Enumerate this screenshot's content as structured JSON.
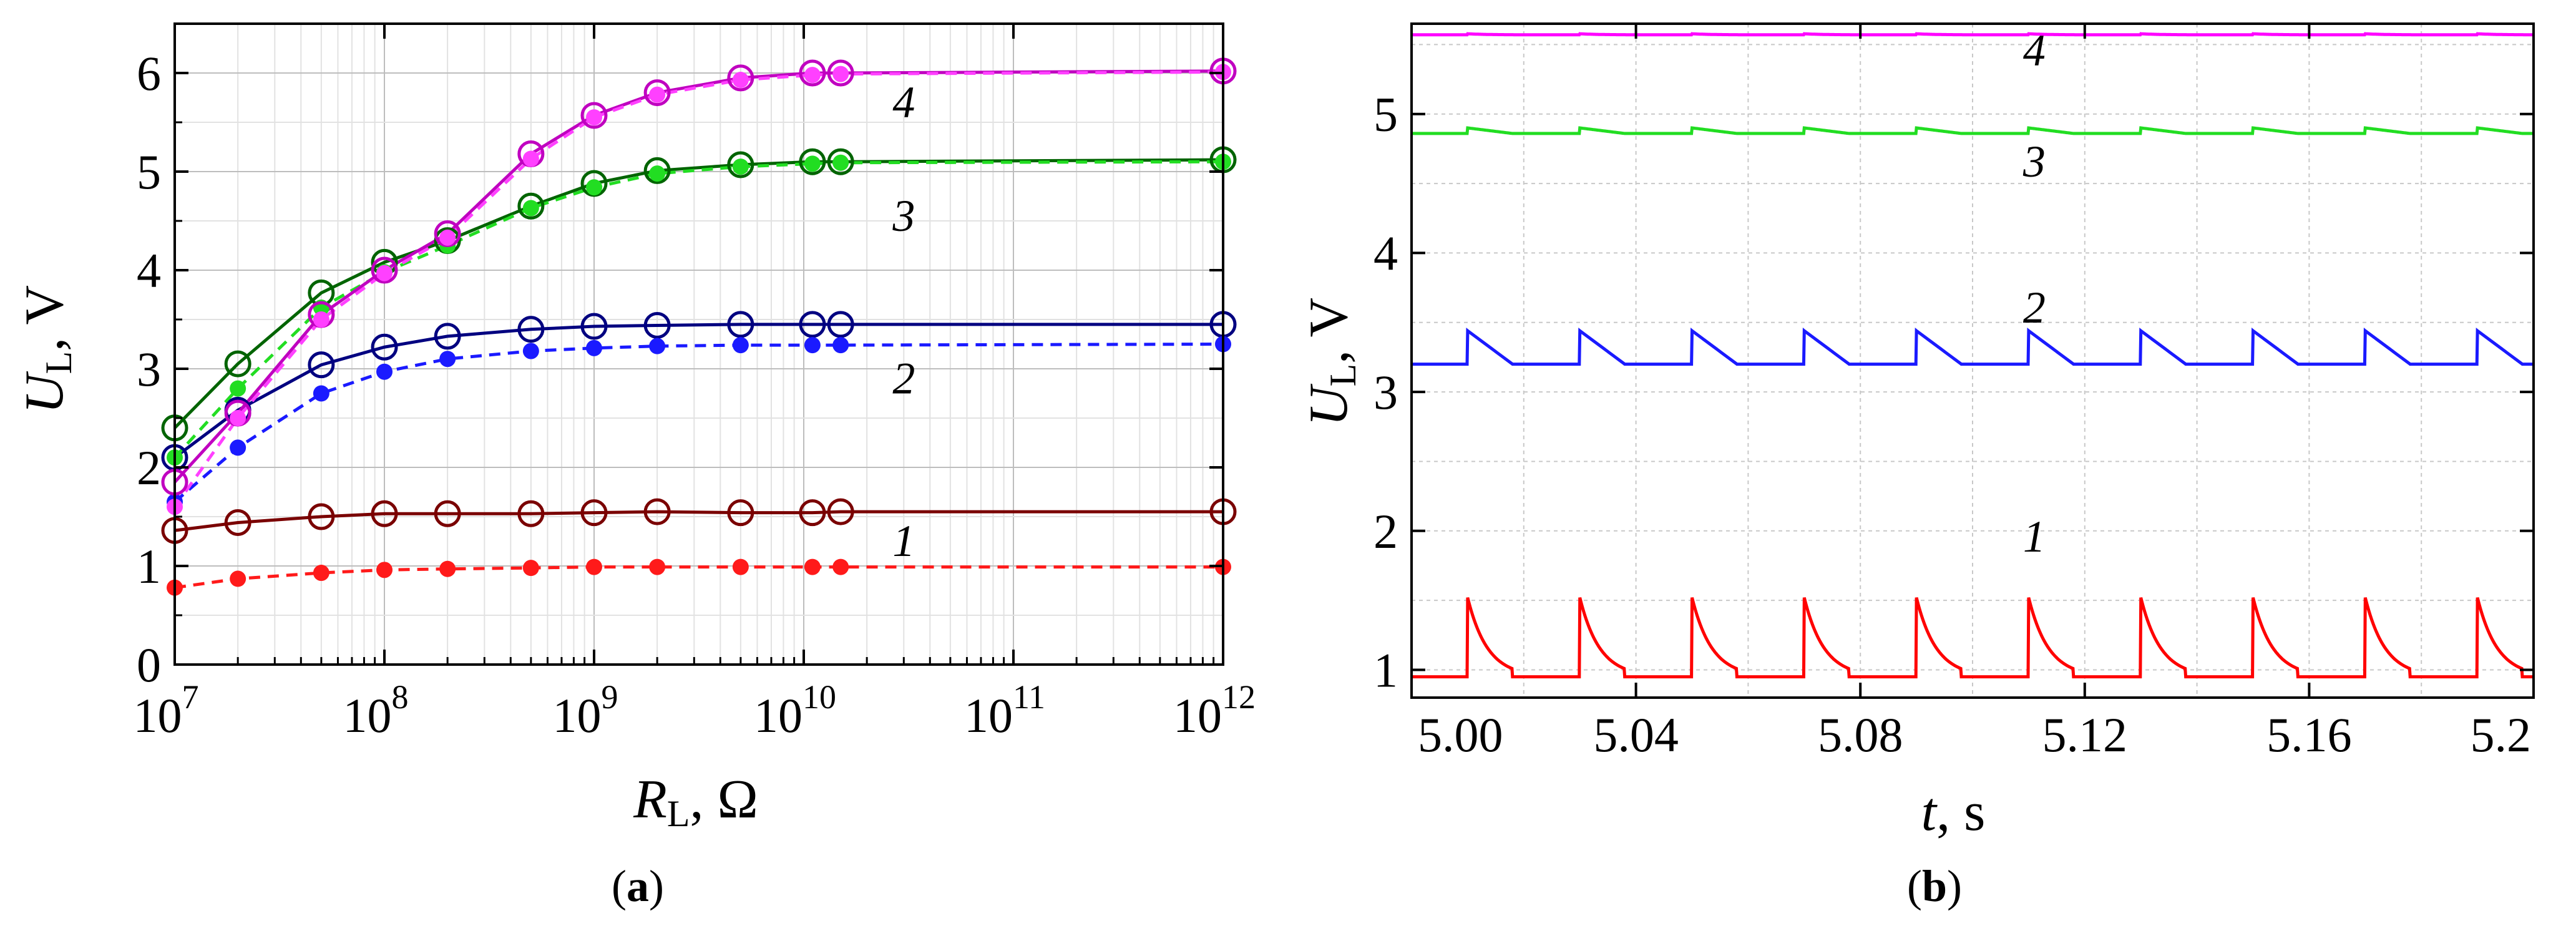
{
  "chart_data": [
    {
      "panel": "a",
      "type": "line",
      "xscale": "log",
      "xlim": [
        10000000,
        1000000000000
      ],
      "ylim": [
        0,
        6.5
      ],
      "xticks": [
        10000000,
        100000000,
        1000000000,
        10000000000,
        100000000000,
        1000000000000
      ],
      "xtick_labels": [
        {
          "base": "10",
          "exp": "7"
        },
        {
          "base": "10",
          "exp": "8"
        },
        {
          "base": "10",
          "exp": "9"
        },
        {
          "base": "10",
          "exp": "10"
        },
        {
          "base": "10",
          "exp": "11"
        },
        {
          "base": "10",
          "exp": "12"
        }
      ],
      "yticks": [
        0,
        1,
        2,
        3,
        4,
        5,
        6
      ],
      "ytick_labels": [
        "0",
        "1",
        "2",
        "3",
        "4",
        "5",
        "6"
      ],
      "xlabel": {
        "main": "R",
        "sub": "L",
        "rest": ", Ω"
      },
      "ylabel": {
        "main": "U",
        "sub": "L",
        "rest": ", V"
      },
      "grid": true,
      "series": [
        {
          "name": "1 solid",
          "curve_label": "1",
          "color": "#7a0000",
          "style": "solid",
          "marker": "open-circle",
          "x": [
            10000000,
            20000000,
            50000000,
            100000000,
            200000000,
            500000000,
            1000000000,
            2000000000,
            5000000000,
            11000000000,
            15000000000,
            1000000000000
          ],
          "y": [
            1.36,
            1.44,
            1.5,
            1.53,
            1.53,
            1.53,
            1.54,
            1.55,
            1.54,
            1.54,
            1.55,
            1.55
          ]
        },
        {
          "name": "1 dashed",
          "curve_label": "1",
          "color": "#ff1a1a",
          "style": "dashed",
          "marker": "filled-circle",
          "x": [
            10000000,
            20000000,
            50000000,
            100000000,
            200000000,
            500000000,
            1000000000,
            2000000000,
            5000000000,
            11000000000,
            15000000000,
            1000000000000
          ],
          "y": [
            0.78,
            0.87,
            0.93,
            0.96,
            0.97,
            0.98,
            0.99,
            0.99,
            0.99,
            0.99,
            0.99,
            0.99
          ]
        },
        {
          "name": "2 solid",
          "curve_label": "2",
          "color": "#000080",
          "style": "solid",
          "marker": "open-circle",
          "x": [
            10000000,
            20000000,
            50000000,
            100000000,
            200000000,
            500000000,
            1000000000,
            2000000000,
            5000000000,
            11000000000,
            15000000000,
            1000000000000
          ],
          "y": [
            2.1,
            2.58,
            3.04,
            3.22,
            3.33,
            3.4,
            3.43,
            3.44,
            3.45,
            3.45,
            3.45,
            3.45
          ]
        },
        {
          "name": "2 dashed",
          "curve_label": "2",
          "color": "#1a1aff",
          "style": "dashed",
          "marker": "filled-circle",
          "x": [
            10000000,
            20000000,
            50000000,
            100000000,
            200000000,
            500000000,
            1000000000,
            2000000000,
            5000000000,
            11000000000,
            15000000000,
            1000000000000
          ],
          "y": [
            1.65,
            2.2,
            2.75,
            2.97,
            3.1,
            3.18,
            3.21,
            3.23,
            3.24,
            3.24,
            3.24,
            3.25
          ]
        },
        {
          "name": "3 solid",
          "curve_label": "3",
          "color": "#006400",
          "style": "solid",
          "marker": "open-circle",
          "x": [
            10000000,
            20000000,
            50000000,
            100000000,
            200000000,
            500000000,
            1000000000,
            2000000000,
            5000000000,
            11000000000,
            15000000000,
            1000000000000
          ],
          "y": [
            2.4,
            3.05,
            3.77,
            4.08,
            4.3,
            4.65,
            4.88,
            5.01,
            5.07,
            5.1,
            5.1,
            5.12
          ]
        },
        {
          "name": "3 dashed",
          "curve_label": "3",
          "color": "#22dd22",
          "style": "dashed",
          "marker": "filled-circle",
          "x": [
            10000000,
            20000000,
            50000000,
            100000000,
            200000000,
            500000000,
            1000000000,
            2000000000,
            5000000000,
            11000000000,
            15000000000,
            1000000000000
          ],
          "y": [
            2.1,
            2.8,
            3.62,
            3.98,
            4.25,
            4.63,
            4.84,
            4.98,
            5.05,
            5.08,
            5.09,
            5.1
          ]
        },
        {
          "name": "4 solid",
          "curve_label": "4",
          "color": "#c000c0",
          "style": "solid",
          "marker": "open-circle",
          "x": [
            10000000,
            20000000,
            50000000,
            100000000,
            200000000,
            500000000,
            1000000000,
            2000000000,
            5000000000,
            11000000000,
            15000000000,
            1000000000000
          ],
          "y": [
            1.85,
            2.55,
            3.55,
            4.0,
            4.37,
            5.18,
            5.57,
            5.8,
            5.95,
            6.0,
            6.0,
            6.02
          ]
        },
        {
          "name": "4 dashed",
          "curve_label": "4",
          "color": "#ff40ff",
          "style": "dashed",
          "marker": "filled-circle",
          "x": [
            10000000,
            20000000,
            50000000,
            100000000,
            200000000,
            500000000,
            1000000000,
            2000000000,
            5000000000,
            11000000000,
            15000000000,
            1000000000000
          ],
          "y": [
            1.6,
            2.5,
            3.5,
            3.97,
            4.33,
            5.13,
            5.55,
            5.78,
            5.93,
            5.98,
            5.99,
            6.01
          ]
        }
      ],
      "curve_labels": [
        {
          "text": "1",
          "x": 30000000000,
          "y": 1.1
        },
        {
          "text": "2",
          "x": 30000000000,
          "y": 2.75
        },
        {
          "text": "3",
          "x": 30000000000,
          "y": 4.4
        },
        {
          "text": "4",
          "x": 30000000000,
          "y": 5.55
        }
      ],
      "panel_label": {
        "open": "(",
        "letter": "a",
        "close": ")"
      }
    },
    {
      "panel": "b",
      "type": "line",
      "xlim": [
        5.0,
        5.2
      ],
      "ylim": [
        0.8,
        5.65
      ],
      "xticks": [
        5.0,
        5.04,
        5.08,
        5.12,
        5.16,
        5.2
      ],
      "xtick_labels": [
        "5.00",
        "5.04",
        "5.08",
        "5.12",
        "5.16",
        "5.2"
      ],
      "yticks": [
        1,
        2,
        3,
        4,
        5
      ],
      "ytick_labels": [
        "1",
        "2",
        "3",
        "4",
        "5"
      ],
      "xlabel": {
        "main": "t",
        "rest": ", s"
      },
      "ylabel": {
        "main": "U",
        "sub": "L",
        "rest": ", V"
      },
      "grid": true,
      "waveform": {
        "period": 0.02,
        "first_spike": 5.01
      },
      "series": [
        {
          "name": "1",
          "curve_label": "1",
          "color": "#ff0000",
          "baseline": 0.95,
          "peak": 1.52,
          "shape": "spike-decay"
        },
        {
          "name": "2",
          "curve_label": "2",
          "color": "#1a1aff",
          "baseline": 3.2,
          "peak": 3.44,
          "shape": "sawtooth"
        },
        {
          "name": "3",
          "curve_label": "3",
          "color": "#22dd22",
          "baseline": 4.86,
          "peak": 4.9,
          "shape": "small-step"
        },
        {
          "name": "4",
          "curve_label": "4",
          "color": "#ff00ff",
          "baseline": 5.57,
          "peak": 5.585,
          "shape": "flat"
        }
      ],
      "curve_labels": [
        {
          "text": "1",
          "x": 5.111,
          "y": 1.85
        },
        {
          "text": "2",
          "x": 5.111,
          "y": 3.5
        },
        {
          "text": "3",
          "x": 5.111,
          "y": 4.55
        },
        {
          "text": "4",
          "x": 5.111,
          "y": 5.35
        }
      ],
      "panel_label": {
        "open": "(",
        "letter": "b",
        "close": ")"
      }
    }
  ]
}
